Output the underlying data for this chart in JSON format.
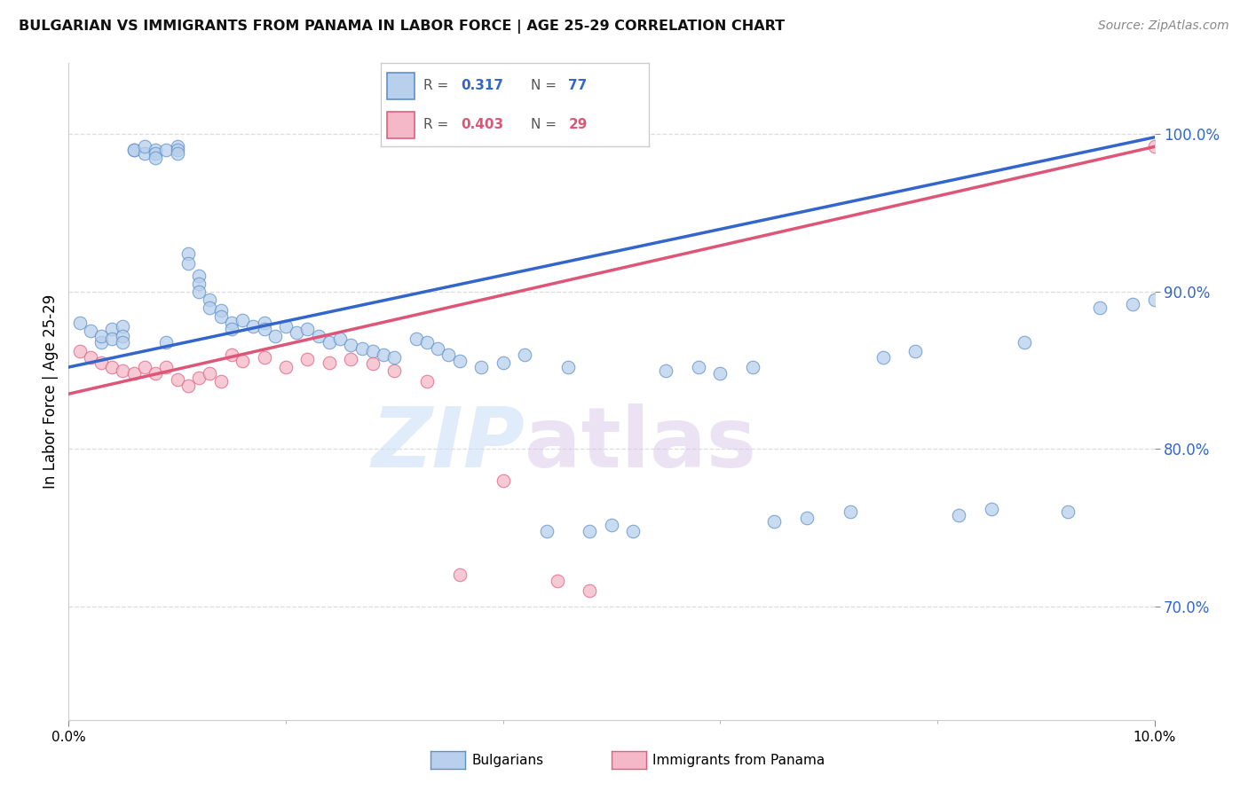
{
  "title": "BULGARIAN VS IMMIGRANTS FROM PANAMA IN LABOR FORCE | AGE 25-29 CORRELATION CHART",
  "source": "Source: ZipAtlas.com",
  "ylabel": "In Labor Force | Age 25-29",
  "ytick_labels": [
    "70.0%",
    "80.0%",
    "90.0%",
    "100.0%"
  ],
  "ytick_values": [
    0.7,
    0.8,
    0.9,
    1.0
  ],
  "xmin": 0.0,
  "xmax": 0.1,
  "ymin": 0.628,
  "ymax": 1.045,
  "legend_blue_r_val": "0.317",
  "legend_blue_n_val": "77",
  "legend_pink_r_val": "0.403",
  "legend_pink_n_val": "29",
  "legend_label_blue": "Bulgarians",
  "legend_label_pink": "Immigrants from Panama",
  "watermark_zip": "ZIP",
  "watermark_atlas": "atlas",
  "dot_color_blue": "#b8d0eb",
  "dot_edge_blue": "#6090c8",
  "dot_color_pink": "#f5b8c8",
  "dot_edge_pink": "#e06080",
  "line_color_blue": "#3366cc",
  "line_color_pink": "#dd5577",
  "bg_color": "#ffffff",
  "grid_color": "#dddddd",
  "blue_x": [
    0.001,
    0.002,
    0.003,
    0.003,
    0.004,
    0.004,
    0.005,
    0.005,
    0.005,
    0.006,
    0.006,
    0.007,
    0.007,
    0.008,
    0.008,
    0.008,
    0.009,
    0.009,
    0.01,
    0.01,
    0.01,
    0.011,
    0.011,
    0.012,
    0.012,
    0.012,
    0.013,
    0.013,
    0.014,
    0.014,
    0.015,
    0.015,
    0.016,
    0.017,
    0.018,
    0.018,
    0.019,
    0.02,
    0.021,
    0.022,
    0.023,
    0.024,
    0.025,
    0.026,
    0.027,
    0.028,
    0.029,
    0.03,
    0.032,
    0.033,
    0.034,
    0.035,
    0.036,
    0.038,
    0.04,
    0.042,
    0.044,
    0.046,
    0.048,
    0.05,
    0.052,
    0.055,
    0.058,
    0.06,
    0.063,
    0.065,
    0.068,
    0.072,
    0.075,
    0.078,
    0.082,
    0.085,
    0.088,
    0.092,
    0.095,
    0.098,
    0.1
  ],
  "blue_y": [
    0.88,
    0.875,
    0.868,
    0.872,
    0.876,
    0.87,
    0.878,
    0.872,
    0.868,
    0.99,
    0.99,
    0.988,
    0.992,
    0.99,
    0.988,
    0.985,
    0.99,
    0.868,
    0.992,
    0.99,
    0.988,
    0.924,
    0.918,
    0.91,
    0.905,
    0.9,
    0.895,
    0.89,
    0.888,
    0.884,
    0.88,
    0.876,
    0.882,
    0.878,
    0.88,
    0.876,
    0.872,
    0.878,
    0.874,
    0.876,
    0.872,
    0.868,
    0.87,
    0.866,
    0.864,
    0.862,
    0.86,
    0.858,
    0.87,
    0.868,
    0.864,
    0.86,
    0.856,
    0.852,
    0.855,
    0.86,
    0.748,
    0.852,
    0.748,
    0.752,
    0.748,
    0.85,
    0.852,
    0.848,
    0.852,
    0.754,
    0.756,
    0.76,
    0.858,
    0.862,
    0.758,
    0.762,
    0.868,
    0.76,
    0.89,
    0.892,
    0.895
  ],
  "pink_x": [
    0.001,
    0.002,
    0.003,
    0.004,
    0.005,
    0.006,
    0.007,
    0.008,
    0.009,
    0.01,
    0.011,
    0.012,
    0.013,
    0.014,
    0.015,
    0.016,
    0.018,
    0.02,
    0.022,
    0.024,
    0.026,
    0.028,
    0.03,
    0.033,
    0.036,
    0.04,
    0.045,
    0.048,
    0.1
  ],
  "pink_y": [
    0.862,
    0.858,
    0.855,
    0.852,
    0.85,
    0.848,
    0.852,
    0.848,
    0.852,
    0.844,
    0.84,
    0.845,
    0.848,
    0.843,
    0.86,
    0.856,
    0.858,
    0.852,
    0.857,
    0.855,
    0.857,
    0.854,
    0.85,
    0.843,
    0.72,
    0.78,
    0.716,
    0.71,
    0.992
  ],
  "blue_line_x0": 0.0,
  "blue_line_x1": 0.1,
  "blue_line_y0": 0.852,
  "blue_line_y1": 0.998,
  "pink_line_x0": 0.0,
  "pink_line_x1": 0.1,
  "pink_line_y0": 0.835,
  "pink_line_y1": 0.992
}
